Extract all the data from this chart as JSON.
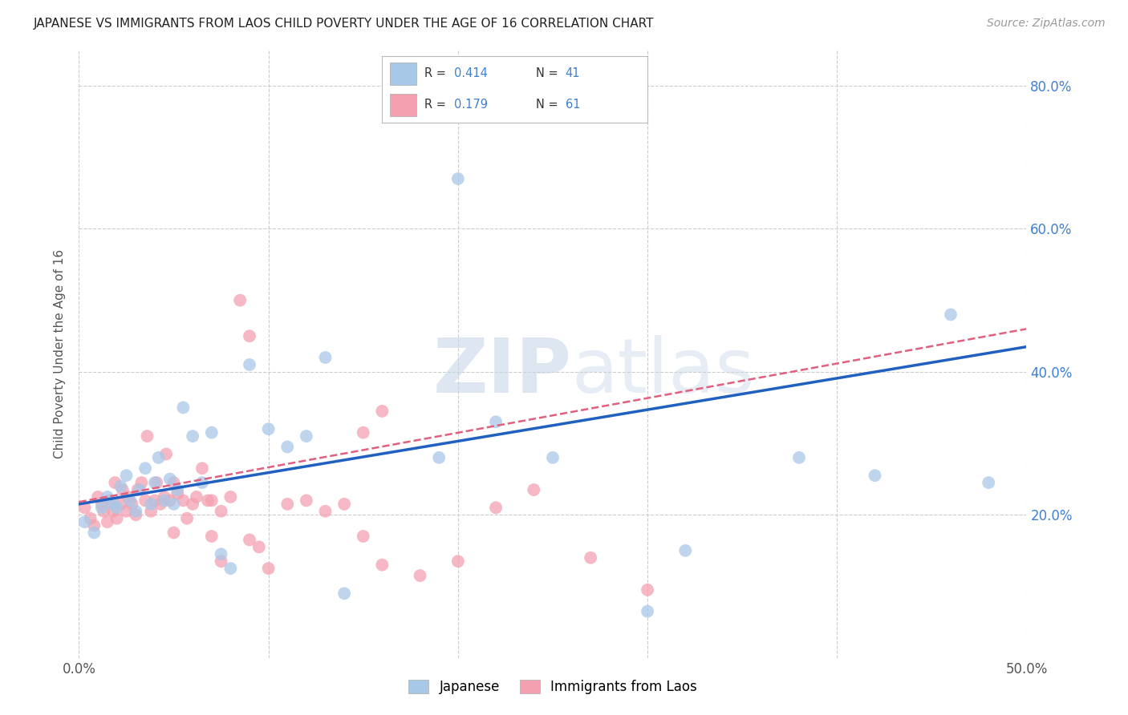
{
  "title": "JAPANESE VS IMMIGRANTS FROM LAOS CHILD POVERTY UNDER THE AGE OF 16 CORRELATION CHART",
  "source": "Source: ZipAtlas.com",
  "ylabel": "Child Poverty Under the Age of 16",
  "xlim": [
    0.0,
    0.5
  ],
  "ylim": [
    0.0,
    0.85
  ],
  "xticks": [
    0.0,
    0.1,
    0.2,
    0.3,
    0.4,
    0.5
  ],
  "xticklabels": [
    "0.0%",
    "",
    "",
    "",
    "",
    "50.0%"
  ],
  "yticks": [
    0.2,
    0.4,
    0.6,
    0.8
  ],
  "yticklabels": [
    "20.0%",
    "40.0%",
    "60.0%",
    "80.0%"
  ],
  "watermark_zip": "ZIP",
  "watermark_atlas": "atlas",
  "legend_r_japanese": "0.414",
  "legend_n_japanese": "41",
  "legend_r_laos": "0.179",
  "legend_n_laos": "61",
  "japanese_color": "#a8c8e8",
  "laos_color": "#f4a0b0",
  "japanese_line_color": "#2060c0",
  "laos_line_color": "#e06080",
  "text_blue": "#4080d0",
  "background_color": "#ffffff",
  "grid_color": "#cccccc",
  "japanese_x": [
    0.003,
    0.008,
    0.012,
    0.015,
    0.018,
    0.02,
    0.022,
    0.025,
    0.027,
    0.03,
    0.032,
    0.035,
    0.038,
    0.04,
    0.042,
    0.045,
    0.048,
    0.05,
    0.052,
    0.055,
    0.06,
    0.065,
    0.07,
    0.075,
    0.08,
    0.09,
    0.1,
    0.11,
    0.12,
    0.13,
    0.14,
    0.19,
    0.22,
    0.25,
    0.3,
    0.32,
    0.38,
    0.42,
    0.46,
    0.48,
    0.2
  ],
  "japanese_y": [
    0.19,
    0.175,
    0.21,
    0.225,
    0.215,
    0.21,
    0.24,
    0.255,
    0.22,
    0.205,
    0.235,
    0.265,
    0.215,
    0.245,
    0.28,
    0.22,
    0.25,
    0.215,
    0.235,
    0.35,
    0.31,
    0.245,
    0.315,
    0.145,
    0.125,
    0.41,
    0.32,
    0.295,
    0.31,
    0.42,
    0.09,
    0.28,
    0.33,
    0.28,
    0.065,
    0.15,
    0.28,
    0.255,
    0.48,
    0.245,
    0.67
  ],
  "laos_x": [
    0.003,
    0.006,
    0.008,
    0.01,
    0.012,
    0.013,
    0.015,
    0.016,
    0.018,
    0.019,
    0.02,
    0.022,
    0.023,
    0.025,
    0.026,
    0.028,
    0.03,
    0.031,
    0.033,
    0.035,
    0.036,
    0.038,
    0.04,
    0.041,
    0.043,
    0.045,
    0.046,
    0.048,
    0.05,
    0.052,
    0.055,
    0.057,
    0.06,
    0.062,
    0.065,
    0.068,
    0.07,
    0.075,
    0.08,
    0.085,
    0.09,
    0.1,
    0.11,
    0.12,
    0.13,
    0.14,
    0.15,
    0.16,
    0.18,
    0.2,
    0.22,
    0.24,
    0.27,
    0.3,
    0.15,
    0.16,
    0.09,
    0.095,
    0.07,
    0.075,
    0.05
  ],
  "laos_y": [
    0.21,
    0.195,
    0.185,
    0.225,
    0.215,
    0.205,
    0.19,
    0.22,
    0.205,
    0.245,
    0.195,
    0.215,
    0.235,
    0.205,
    0.225,
    0.215,
    0.2,
    0.235,
    0.245,
    0.22,
    0.31,
    0.205,
    0.22,
    0.245,
    0.215,
    0.225,
    0.285,
    0.22,
    0.245,
    0.23,
    0.22,
    0.195,
    0.215,
    0.225,
    0.265,
    0.22,
    0.22,
    0.205,
    0.225,
    0.5,
    0.45,
    0.125,
    0.215,
    0.22,
    0.205,
    0.215,
    0.17,
    0.13,
    0.115,
    0.135,
    0.21,
    0.235,
    0.14,
    0.095,
    0.315,
    0.345,
    0.165,
    0.155,
    0.17,
    0.135,
    0.175
  ],
  "jap_trend_x": [
    0.0,
    0.5
  ],
  "jap_trend_y": [
    0.215,
    0.435
  ],
  "laos_trend_x": [
    0.0,
    0.5
  ],
  "laos_trend_y": [
    0.218,
    0.46
  ]
}
